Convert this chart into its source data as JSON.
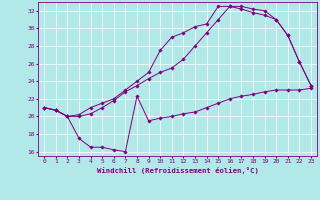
{
  "xlabel": "Windchill (Refroidissement éolien,°C)",
  "bg_color": "#b2e8e8",
  "line_color": "#800080",
  "grid_color": "#ffffff",
  "xlim": [
    -0.5,
    23.5
  ],
  "ylim": [
    15.5,
    33
  ],
  "yticks": [
    16,
    18,
    20,
    22,
    24,
    26,
    28,
    30,
    32
  ],
  "xticks": [
    0,
    1,
    2,
    3,
    4,
    5,
    6,
    7,
    8,
    9,
    10,
    11,
    12,
    13,
    14,
    15,
    16,
    17,
    18,
    19,
    20,
    21,
    22,
    23
  ],
  "series1_x": [
    0,
    1,
    2,
    3,
    4,
    5,
    6,
    7,
    8,
    9,
    10,
    11,
    12,
    13,
    14,
    15,
    16,
    17,
    18,
    19,
    20,
    21,
    22,
    23
  ],
  "series1_y": [
    21.0,
    20.7,
    20.0,
    17.5,
    16.5,
    16.5,
    16.2,
    16.0,
    22.3,
    19.5,
    19.8,
    20.0,
    20.3,
    20.5,
    21.0,
    21.5,
    22.0,
    22.3,
    22.5,
    22.8,
    23.0,
    23.0,
    23.0,
    23.2
  ],
  "series2_x": [
    0,
    1,
    2,
    3,
    4,
    5,
    6,
    7,
    8,
    9,
    10,
    11,
    12,
    13,
    14,
    15,
    16,
    17,
    18,
    19,
    20,
    21,
    22,
    23
  ],
  "series2_y": [
    21.0,
    20.7,
    20.0,
    20.0,
    20.3,
    21.0,
    21.8,
    22.8,
    23.5,
    24.3,
    25.0,
    25.5,
    26.5,
    28.0,
    29.5,
    31.0,
    32.5,
    32.5,
    32.2,
    32.0,
    31.0,
    29.2,
    26.2,
    23.5
  ],
  "series3_x": [
    0,
    1,
    2,
    3,
    4,
    5,
    6,
    7,
    8,
    9,
    10,
    11,
    12,
    13,
    14,
    15,
    16,
    17,
    18,
    19,
    20,
    21,
    22,
    23
  ],
  "series3_y": [
    21.0,
    20.7,
    20.0,
    20.2,
    21.0,
    21.5,
    22.0,
    23.0,
    24.0,
    25.0,
    27.5,
    29.0,
    29.5,
    30.2,
    30.5,
    32.5,
    32.5,
    32.2,
    31.8,
    31.5,
    31.0,
    29.2,
    26.2,
    23.5
  ]
}
